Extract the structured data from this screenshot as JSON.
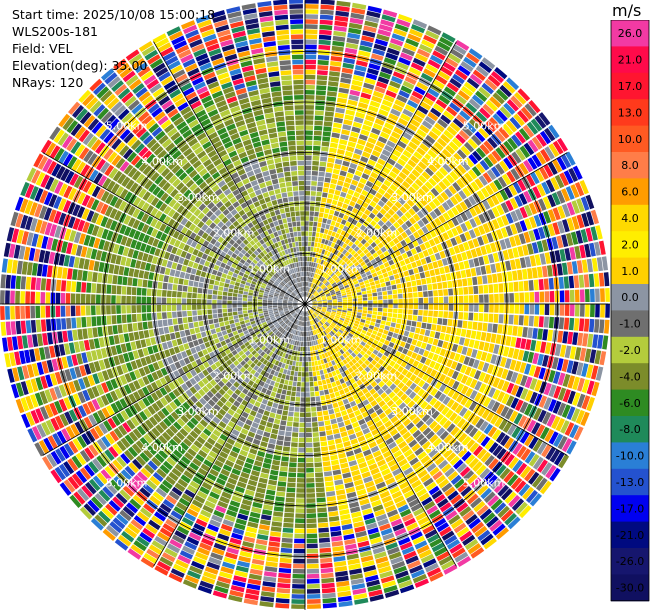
{
  "header": {
    "start_time": "Start time: 2025/10/08 15:00:18",
    "site": "WLS200s-181",
    "field": "Field: VEL",
    "elevation": "Elevation(deg): 35.00",
    "nrays": "NRays: 120"
  },
  "colorbar": {
    "unit": "m/s",
    "bins": [
      {
        "label": "26.0",
        "color": "#f23aa3"
      },
      {
        "label": "21.0",
        "color": "#ff0a4a"
      },
      {
        "label": "17.0",
        "color": "#ff1530"
      },
      {
        "label": "13.0",
        "color": "#ff3a1c"
      },
      {
        "label": "10.0",
        "color": "#ff5a22"
      },
      {
        "label": "8.0",
        "color": "#ff7d48"
      },
      {
        "label": "6.0",
        "color": "#ff9c00"
      },
      {
        "label": "4.0",
        "color": "#ffd900"
      },
      {
        "label": "2.0",
        "color": "#ffee00"
      },
      {
        "label": "1.0",
        "color": "#ffd000"
      },
      {
        "label": "0.0",
        "color": "#8c95a3"
      },
      {
        "label": "-1.0",
        "color": "#6f6f6f"
      },
      {
        "label": "-2.0",
        "color": "#b4cc3c"
      },
      {
        "label": "-4.0",
        "color": "#7c8c2a"
      },
      {
        "label": "-6.0",
        "color": "#2e8b22"
      },
      {
        "label": "-8.0",
        "color": "#1f8a5a"
      },
      {
        "label": "-10.0",
        "color": "#2a7fd6"
      },
      {
        "label": "-13.0",
        "color": "#2452cf"
      },
      {
        "label": "-17.0",
        "color": "#0000f0"
      },
      {
        "label": "-21.0",
        "color": "#000a80"
      },
      {
        "label": "-26.0",
        "color": "#16166e"
      },
      {
        "label": "-30.0",
        "color": "#101060"
      }
    ]
  },
  "chart_data": {
    "type": "heatmap",
    "field": "VEL",
    "elevation_deg": 35.0,
    "n_rays": 120,
    "range_km": [
      0,
      6.0
    ],
    "range_rings": [
      {
        "range_km": 1.0,
        "label": "1.00km"
      },
      {
        "range_km": 2.0,
        "label": "2.00km"
      },
      {
        "range_km": 3.0,
        "label": "3.00km"
      },
      {
        "range_km": 4.0,
        "label": "4.00km"
      },
      {
        "range_km": 5.0,
        "label": "5.00km"
      }
    ],
    "spoke_angles_deg": [
      0,
      30,
      60,
      90,
      120,
      150,
      180,
      210,
      240,
      270,
      300,
      330
    ],
    "pattern": {
      "near_east_velocity": "1.0 to 4.0",
      "near_west_velocity": "-1.0 to -2.0",
      "center_velocity": "0.0 to -1.0",
      "outer_ranges": "noise",
      "noise_start_km": 4.2
    }
  }
}
